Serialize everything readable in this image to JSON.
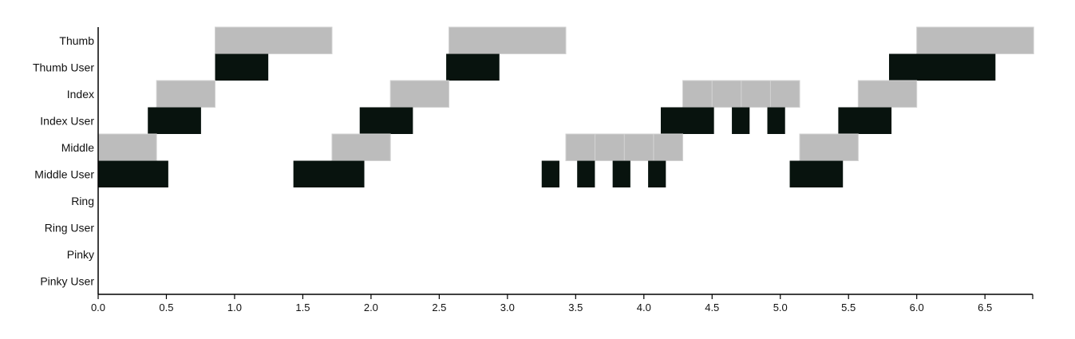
{
  "chart_data": {
    "type": "timeline",
    "rows": [
      "Thumb",
      "Thumb User",
      "Index",
      "Index User",
      "Middle",
      "Middle User",
      "Ring",
      "Ring User",
      "Pinky",
      "Pinky User"
    ],
    "xlim": [
      0.0,
      6.85
    ],
    "xticks": [
      0.0,
      0.5,
      1.0,
      1.5,
      2.0,
      2.5,
      3.0,
      3.5,
      4.0,
      4.5,
      5.0,
      5.5,
      6.0,
      6.5
    ],
    "xtick_labels": [
      "0.0",
      "0.5",
      "1.0",
      "1.5",
      "2.0",
      "2.5",
      "3.0",
      "3.5",
      "4.0",
      "4.5",
      "5.0",
      "5.5",
      "6.0",
      "6.5"
    ],
    "grid": false,
    "colors": {
      "target": "#bcbcbc",
      "user": "#08130e",
      "separator": "#d2d2d2",
      "axis": "#000000"
    },
    "series": [
      {
        "row": "Thumb",
        "kind": "target",
        "segments": [
          [
            0.857,
            1.714
          ],
          [
            2.571,
            3.428
          ],
          [
            6.0,
            6.857
          ]
        ]
      },
      {
        "row": "Thumb User",
        "kind": "user",
        "segments": [
          [
            0.857,
            1.247
          ],
          [
            2.551,
            2.941
          ],
          [
            5.797,
            6.577
          ]
        ]
      },
      {
        "row": "Index",
        "kind": "target",
        "segments": [
          [
            0.428,
            0.857
          ],
          [
            2.142,
            2.571
          ],
          [
            4.285,
            4.5
          ],
          [
            4.5,
            4.714
          ],
          [
            4.714,
            4.928
          ],
          [
            4.928,
            5.142
          ],
          [
            5.571,
            6.0
          ]
        ]
      },
      {
        "row": "Index User",
        "kind": "user",
        "segments": [
          [
            0.364,
            0.754
          ],
          [
            1.917,
            2.307
          ],
          [
            4.124,
            4.514
          ],
          [
            4.645,
            4.775
          ],
          [
            4.905,
            5.035
          ],
          [
            5.425,
            5.815
          ]
        ]
      },
      {
        "row": "Middle",
        "kind": "target",
        "segments": [
          [
            0.0,
            0.428
          ],
          [
            1.714,
            2.142
          ],
          [
            3.428,
            3.642
          ],
          [
            3.642,
            3.857
          ],
          [
            3.857,
            4.071
          ],
          [
            4.071,
            4.285
          ],
          [
            5.142,
            5.571
          ]
        ]
      },
      {
        "row": "Middle User",
        "kind": "user",
        "segments": [
          [
            0.0,
            0.514
          ],
          [
            1.431,
            1.951
          ],
          [
            3.251,
            3.381
          ],
          [
            3.511,
            3.641
          ],
          [
            3.771,
            3.901
          ],
          [
            4.031,
            4.161
          ],
          [
            5.069,
            5.459
          ]
        ]
      },
      {
        "row": "Ring",
        "kind": "target",
        "segments": []
      },
      {
        "row": "Ring User",
        "kind": "user",
        "segments": []
      },
      {
        "row": "Pinky",
        "kind": "target",
        "segments": []
      },
      {
        "row": "Pinky User",
        "kind": "user",
        "segments": []
      }
    ]
  }
}
